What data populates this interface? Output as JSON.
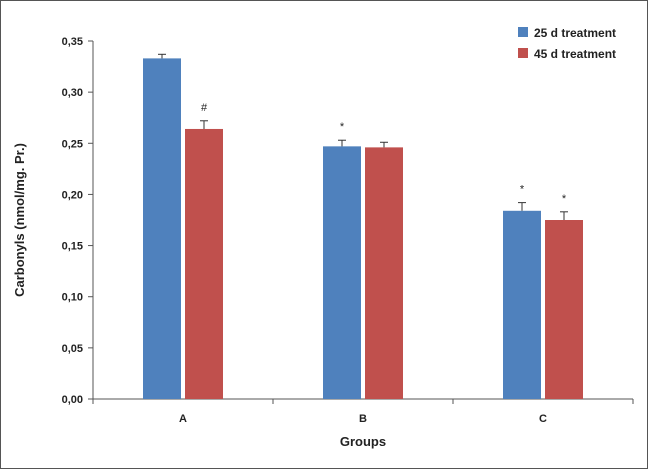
{
  "chart_data": {
    "type": "bar",
    "title": "",
    "xlabel": "Groups",
    "ylabel": "Carbonyls (nmol/mg. Pr.)",
    "categories": [
      "A",
      "B",
      "C"
    ],
    "ylim": [
      0,
      0.35
    ],
    "yticks": [
      "0,00",
      "0,05",
      "0,10",
      "0,15",
      "0,20",
      "0,25",
      "0,30",
      "0,35"
    ],
    "grid": false,
    "legend_position": "top-right",
    "series": [
      {
        "name": "25 d treatment",
        "color": "#4F81BD",
        "values": [
          0.333,
          0.247,
          0.184
        ],
        "errors": [
          0.004,
          0.006,
          0.008
        ],
        "annotations": [
          "",
          "*",
          "*"
        ]
      },
      {
        "name": "45 d treatment",
        "color": "#C0504D",
        "values": [
          0.264,
          0.246,
          0.175
        ],
        "errors": [
          0.008,
          0.005,
          0.008
        ],
        "annotations": [
          "#",
          "",
          "*"
        ]
      }
    ]
  }
}
